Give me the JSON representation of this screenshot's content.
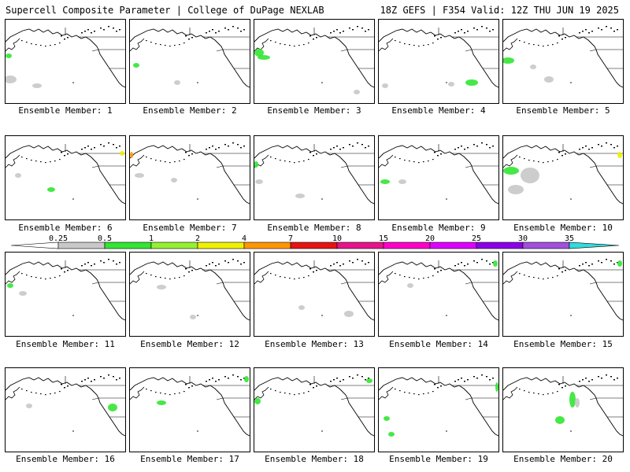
{
  "header": {
    "left": "Supercell Composite Parameter | College of DuPage NEXLAB",
    "right": "18Z GEFS | F354 Valid: 12Z THU JUN 19 2025"
  },
  "panels": [
    {
      "label": "Ensemble Member: 1"
    },
    {
      "label": "Ensemble Member: 2"
    },
    {
      "label": "Ensemble Member: 3"
    },
    {
      "label": "Ensemble Member: 4"
    },
    {
      "label": "Ensemble Member: 5"
    },
    {
      "label": "Ensemble Member: 6"
    },
    {
      "label": "Ensemble Member: 7"
    },
    {
      "label": "Ensemble Member: 8"
    },
    {
      "label": "Ensemble Member: 9"
    },
    {
      "label": "Ensemble Member: 10"
    },
    {
      "label": "Ensemble Member: 11"
    },
    {
      "label": "Ensemble Member: 12"
    },
    {
      "label": "Ensemble Member: 13"
    },
    {
      "label": "Ensemble Member: 14"
    },
    {
      "label": "Ensemble Member: 15"
    },
    {
      "label": "Ensemble Member: 16"
    },
    {
      "label": "Ensemble Member: 17"
    },
    {
      "label": "Ensemble Member: 18"
    },
    {
      "label": "Ensemble Member: 19"
    },
    {
      "label": "Ensemble Member: 20"
    }
  ],
  "colorbar": {
    "ticks": [
      "0.25",
      "0.5",
      "1",
      "2",
      "4",
      "7",
      "10",
      "15",
      "20",
      "25",
      "30",
      "35"
    ],
    "colors": [
      "#ffffff",
      "#c8c8c8",
      "#32e632",
      "#96f032",
      "#f0f000",
      "#ff9600",
      "#e61414",
      "#e6148c",
      "#ff00c8",
      "#dc00ff",
      "#8c00e6",
      "#a050dc",
      "#32dcdc"
    ]
  }
}
